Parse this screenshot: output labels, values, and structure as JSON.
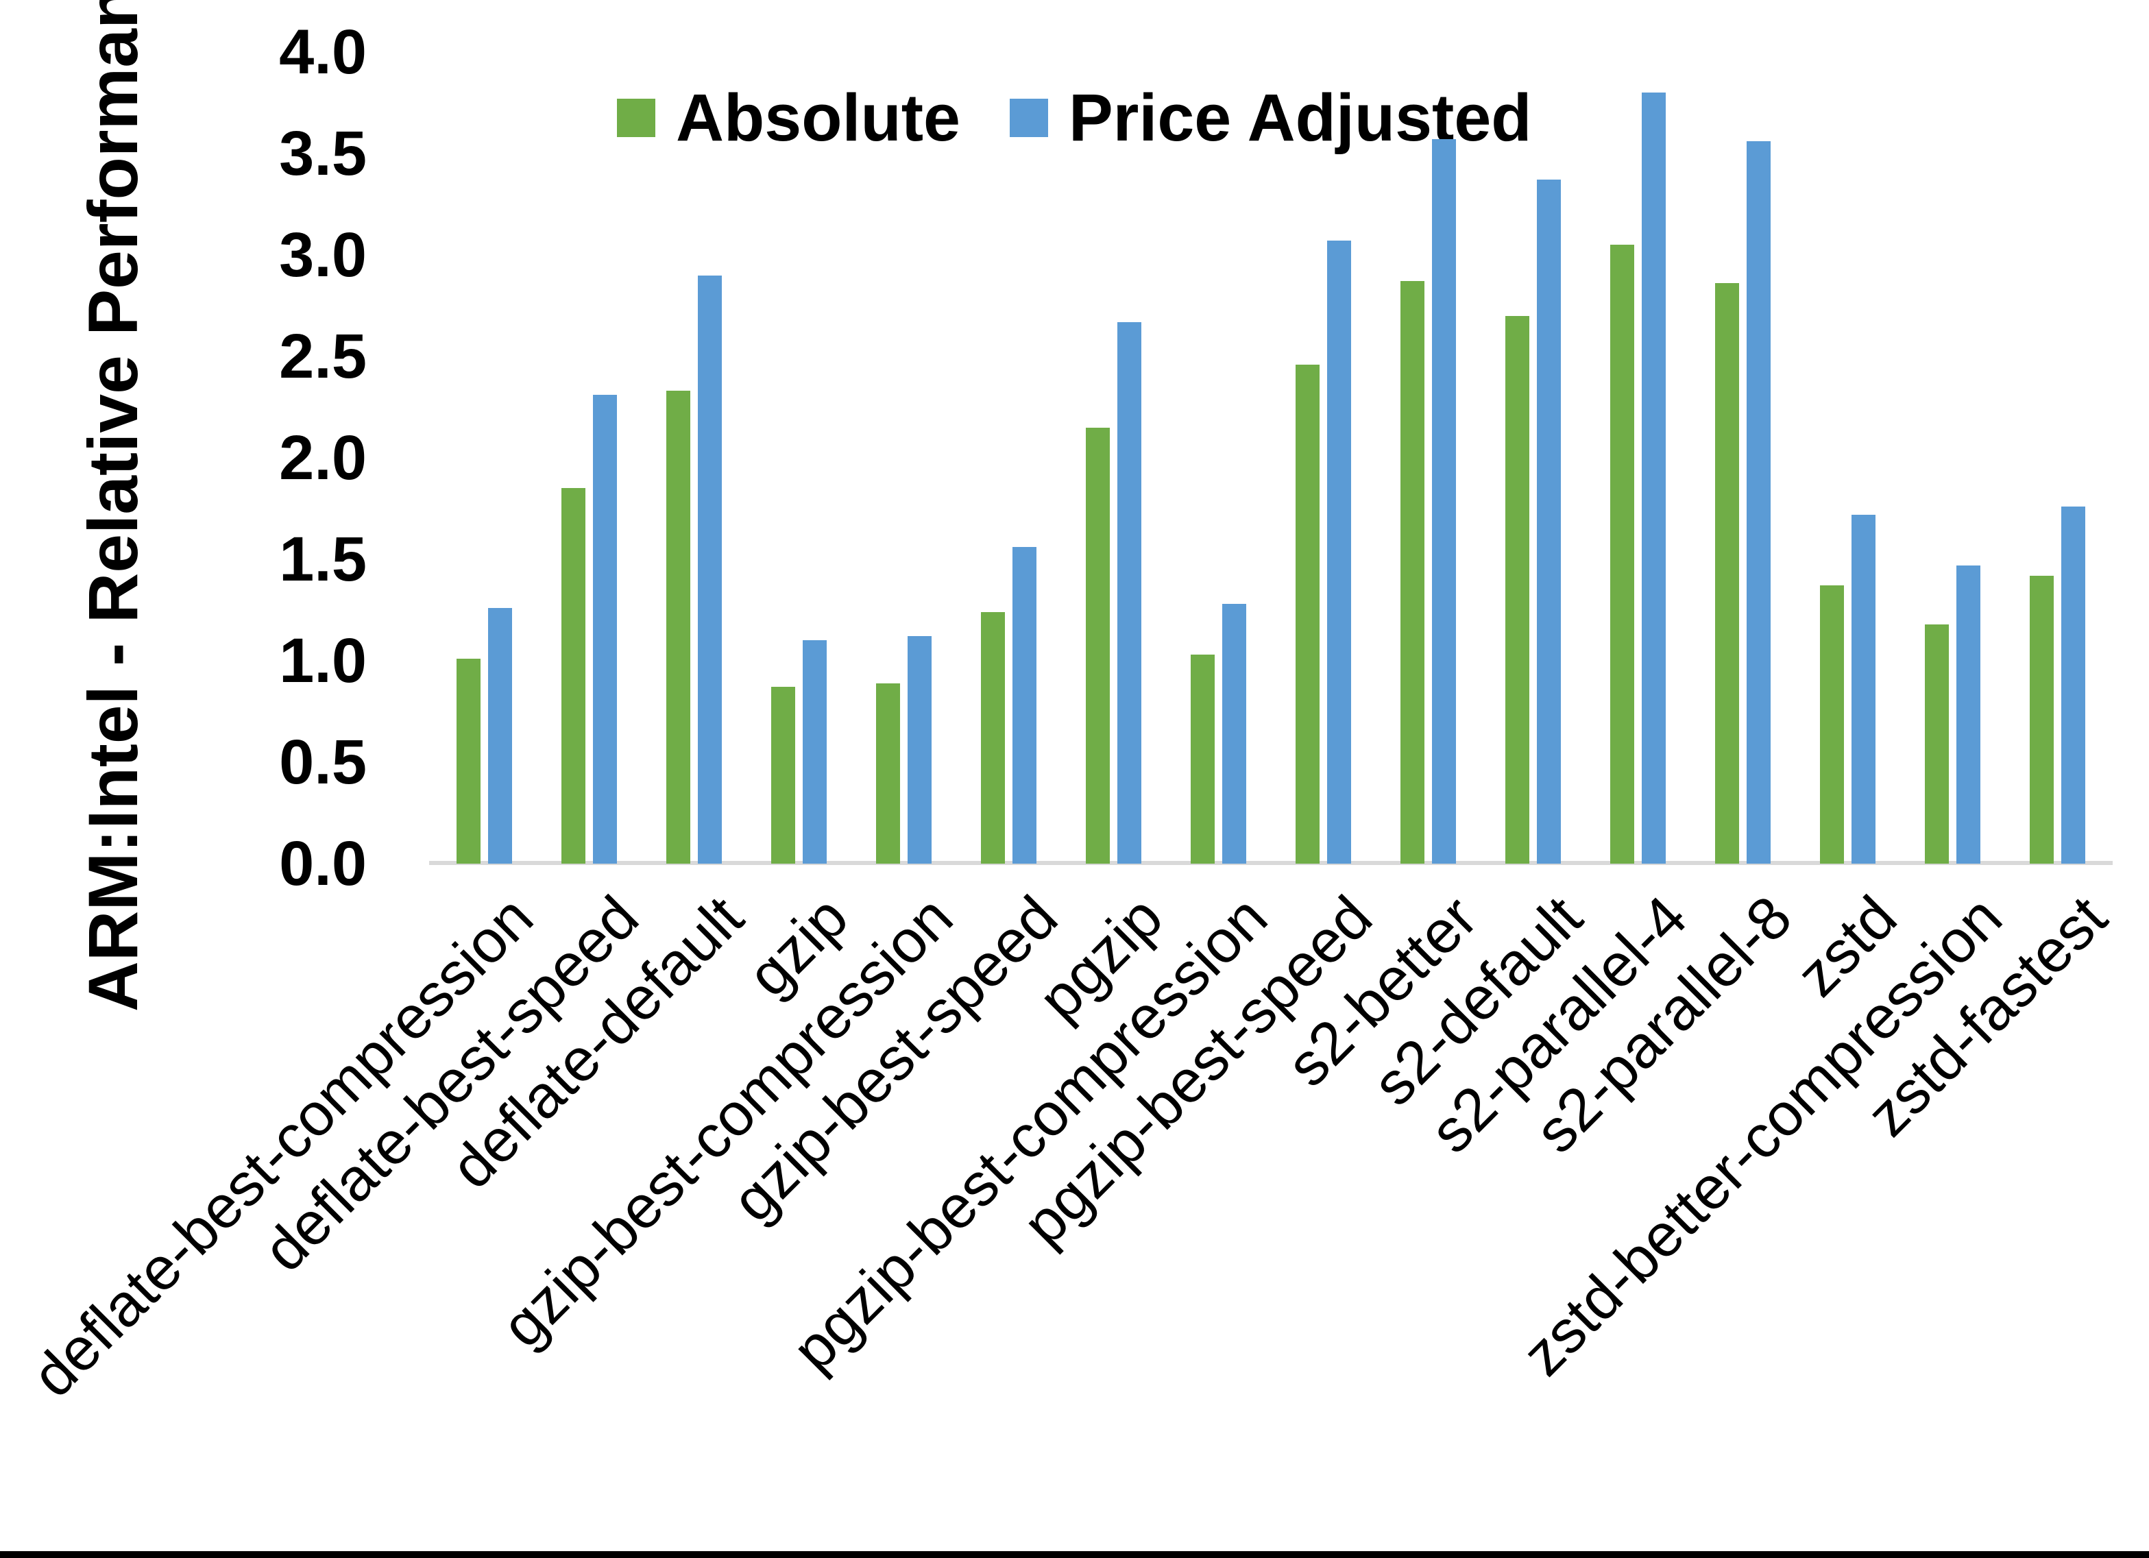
{
  "chart_data": {
    "type": "bar",
    "title": "",
    "xlabel": "",
    "ylabel": "ARM:Intel - Relative Performance",
    "ylim": [
      0,
      4
    ],
    "ytick_step": 0.5,
    "ytick_labels": [
      "0.0",
      "0.5",
      "1.0",
      "1.5",
      "2.0",
      "2.5",
      "3.0",
      "3.5",
      "4.0"
    ],
    "grid": false,
    "legend_position": "top-center",
    "axis_line_color": "#d9d9d9",
    "categories": [
      "deflate-best-compression",
      "deflate-best-speed",
      "deflate-default",
      "gzip",
      "gzip-best-compression",
      "gzip-best-speed",
      "pgzip",
      "pgzip-best-compression",
      "pgzip-best-speed",
      "s2-better",
      "s2-default",
      "s2-parallel-4",
      "s2-parallel-8",
      "zstd",
      "zstd-better-compression",
      "zstd-fastest"
    ],
    "series": [
      {
        "name": "Absolute",
        "color": "#70AD47",
        "values": [
          1.01,
          1.85,
          2.33,
          0.87,
          0.89,
          1.24,
          2.15,
          1.03,
          2.46,
          2.87,
          2.7,
          3.05,
          2.86,
          1.37,
          1.18,
          1.42
        ]
      },
      {
        "name": "Price Adjusted",
        "color": "#5B9BD5",
        "values": [
          1.26,
          2.31,
          2.9,
          1.1,
          1.12,
          1.56,
          2.67,
          1.28,
          3.07,
          3.57,
          3.37,
          3.8,
          3.56,
          1.72,
          1.47,
          1.76
        ]
      }
    ]
  }
}
